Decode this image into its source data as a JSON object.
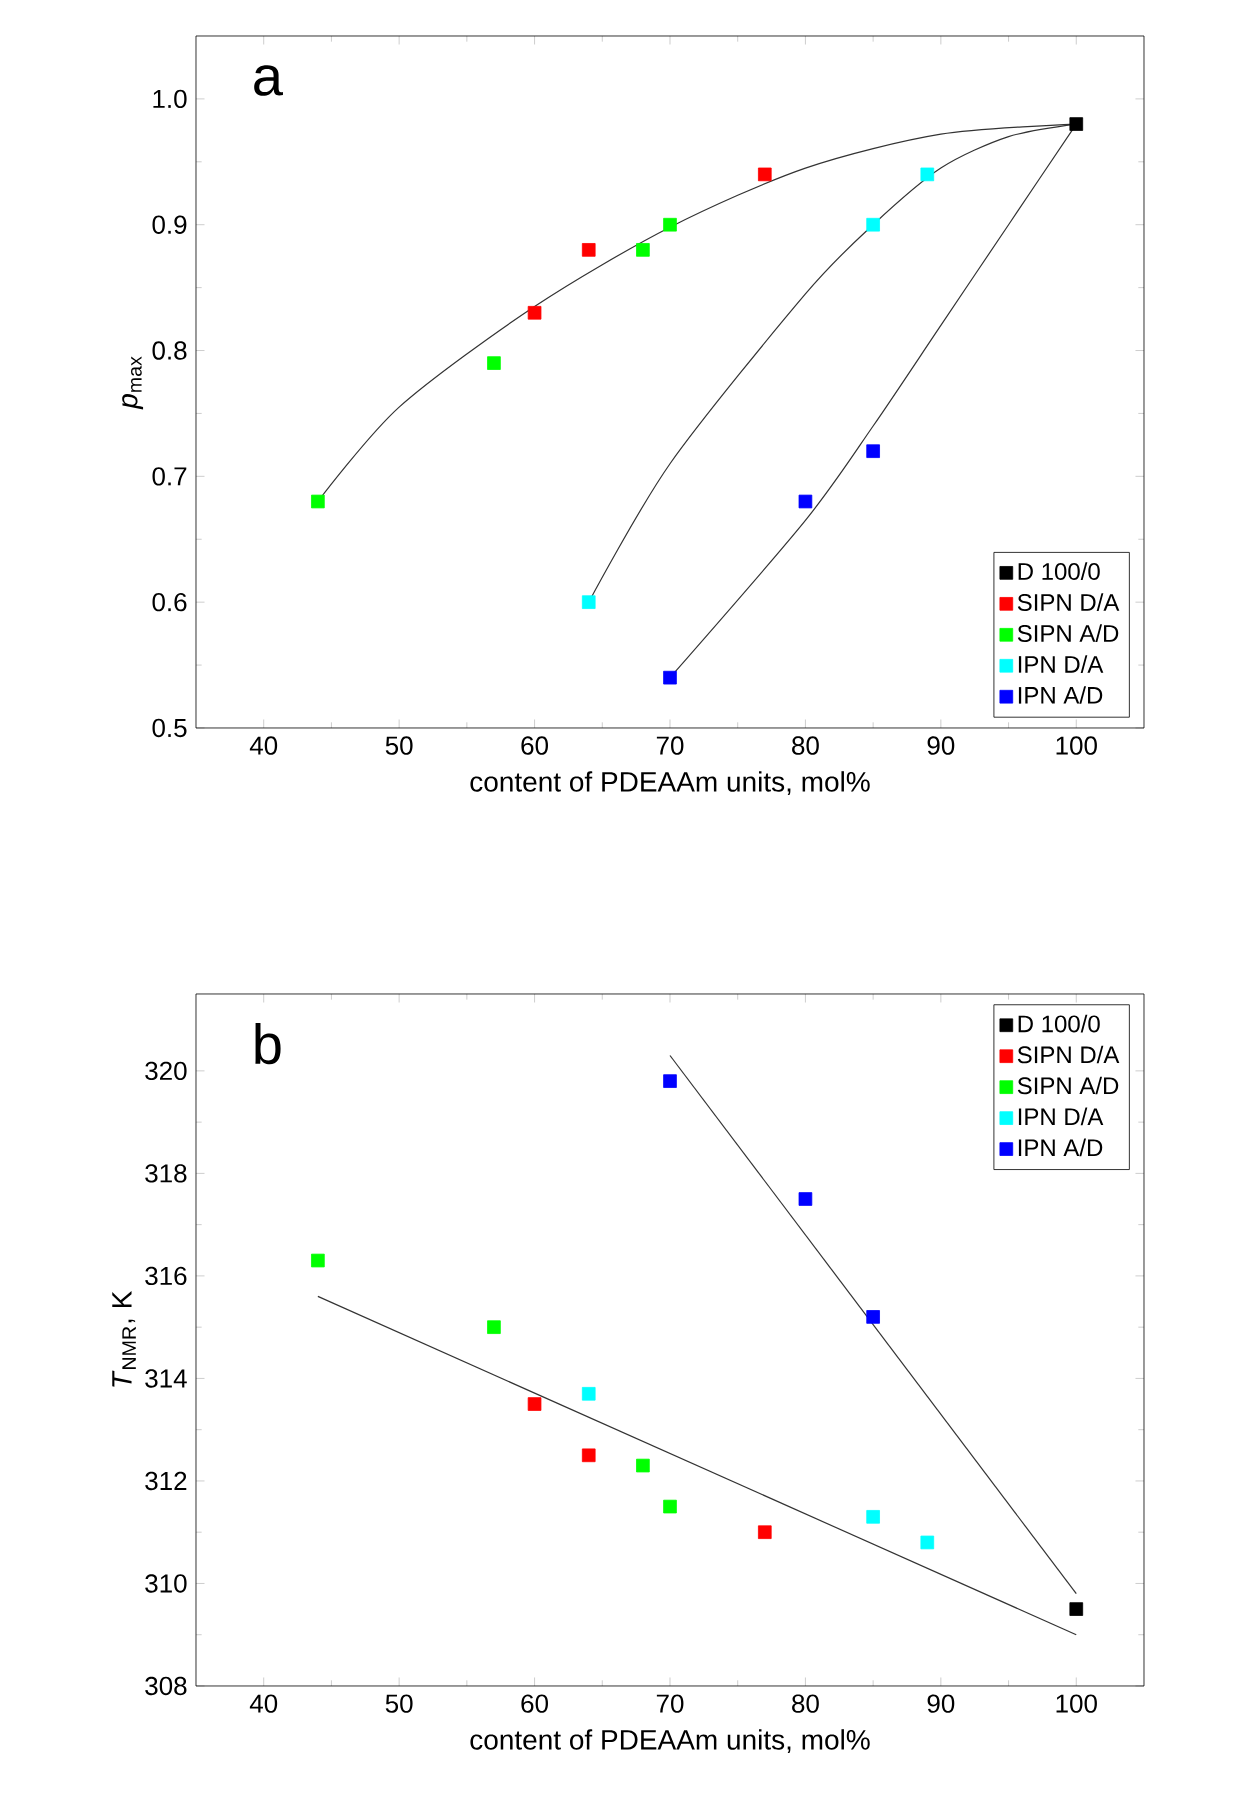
{
  "chart_data": [
    {
      "type": "scatter",
      "xlabel": "content of PDEAAm units, mol%",
      "ylabel": "*p*$_{max}$",
      "annotations": [
        "a"
      ],
      "legend": "bottom right",
      "marker": "square",
      "xlim": [
        35,
        105
      ],
      "xticks": [
        40,
        50,
        60,
        70,
        80,
        90,
        100
      ],
      "ylim": [
        0.5,
        1.05
      ],
      "yticks": [
        {
          "value": 0.5,
          "label": "0.5"
        },
        {
          "value": 0.6,
          "label": "0.6"
        },
        {
          "value": 0.7,
          "label": "0.7"
        },
        {
          "value": 0.8,
          "label": "0.8"
        },
        {
          "value": 0.9,
          "label": "0.9"
        },
        {
          "value": 1.0,
          "label": "1.0"
        }
      ],
      "series": [
        {
          "type": "line",
          "marker": "none",
          "line_style": "solid",
          "color": "#333333",
          "x": [
            44,
            50,
            60,
            70,
            80,
            90,
            100
          ],
          "values": [
            0.68,
            0.755,
            0.835,
            0.898,
            0.945,
            0.972,
            0.98
          ]
        },
        {
          "type": "line",
          "marker": "none",
          "line_style": "solid",
          "color": "#333333",
          "x": [
            64,
            70,
            80,
            85,
            90,
            95,
            100
          ],
          "values": [
            0.6,
            0.71,
            0.845,
            0.9,
            0.945,
            0.97,
            0.98
          ]
        },
        {
          "type": "line",
          "marker": "none",
          "line_style": "solid",
          "color": "#333333",
          "x": [
            70,
            80,
            85,
            90,
            95,
            100
          ],
          "values": [
            0.54,
            0.665,
            0.74,
            0.82,
            0.9,
            0.98
          ]
        },
        {
          "name": "D 100/0",
          "color": "#000000",
          "x": [
            100
          ],
          "values": [
            0.98
          ]
        },
        {
          "name": "SIPN D/A",
          "color": "#ff0000",
          "x": [
            60,
            64,
            77
          ],
          "values": [
            0.83,
            0.88,
            0.94
          ]
        },
        {
          "name": "SIPN A/D",
          "color": "#00ff00",
          "x": [
            44,
            57,
            68,
            70
          ],
          "values": [
            0.68,
            0.79,
            0.88,
            0.9
          ]
        },
        {
          "name": "IPN D/A",
          "color": "#00ffff",
          "x": [
            64,
            85,
            89
          ],
          "values": [
            0.6,
            0.9,
            0.94
          ]
        },
        {
          "name": "IPN A/D",
          "color": "#0000ff",
          "x": [
            70,
            80,
            85
          ],
          "values": [
            0.54,
            0.68,
            0.72
          ]
        }
      ]
    },
    {
      "type": "scatter",
      "xlabel": "content of PDEAAm units, mol%",
      "ylabel": "*T*$_{NMR}$, K",
      "annotations": [
        "b"
      ],
      "legend": "top right",
      "marker": "square",
      "xlim": [
        35,
        105
      ],
      "xticks": [
        40,
        50,
        60,
        70,
        80,
        90,
        100
      ],
      "ylim": [
        308,
        321.5
      ],
      "yticks": [
        308,
        310,
        312,
        314,
        316,
        318,
        320
      ],
      "series": [
        {
          "type": "line",
          "marker": "none",
          "line_style": "solid",
          "color": "#333333",
          "x": [
            44,
            100
          ],
          "values": [
            315.6,
            309.0
          ]
        },
        {
          "type": "line",
          "marker": "none",
          "line_style": "solid",
          "color": "#333333",
          "x": [
            70,
            100
          ],
          "values": [
            320.3,
            309.8
          ]
        },
        {
          "name": "D 100/0",
          "color": "#000000",
          "x": [
            100
          ],
          "values": [
            309.5
          ]
        },
        {
          "name": "SIPN D/A",
          "color": "#ff0000",
          "x": [
            60,
            64,
            77
          ],
          "values": [
            313.5,
            312.5,
            311.0
          ]
        },
        {
          "name": "SIPN A/D",
          "color": "#00ff00",
          "x": [
            44,
            57,
            68,
            70
          ],
          "values": [
            316.3,
            315.0,
            312.3,
            311.5
          ]
        },
        {
          "name": "IPN D/A",
          "color": "#00ffff",
          "x": [
            64,
            85,
            89
          ],
          "values": [
            313.7,
            311.3,
            310.8
          ]
        },
        {
          "name": "IPN A/D",
          "color": "#0000ff",
          "x": [
            70,
            80,
            85
          ],
          "values": [
            319.8,
            317.5,
            315.2
          ]
        }
      ]
    }
  ]
}
